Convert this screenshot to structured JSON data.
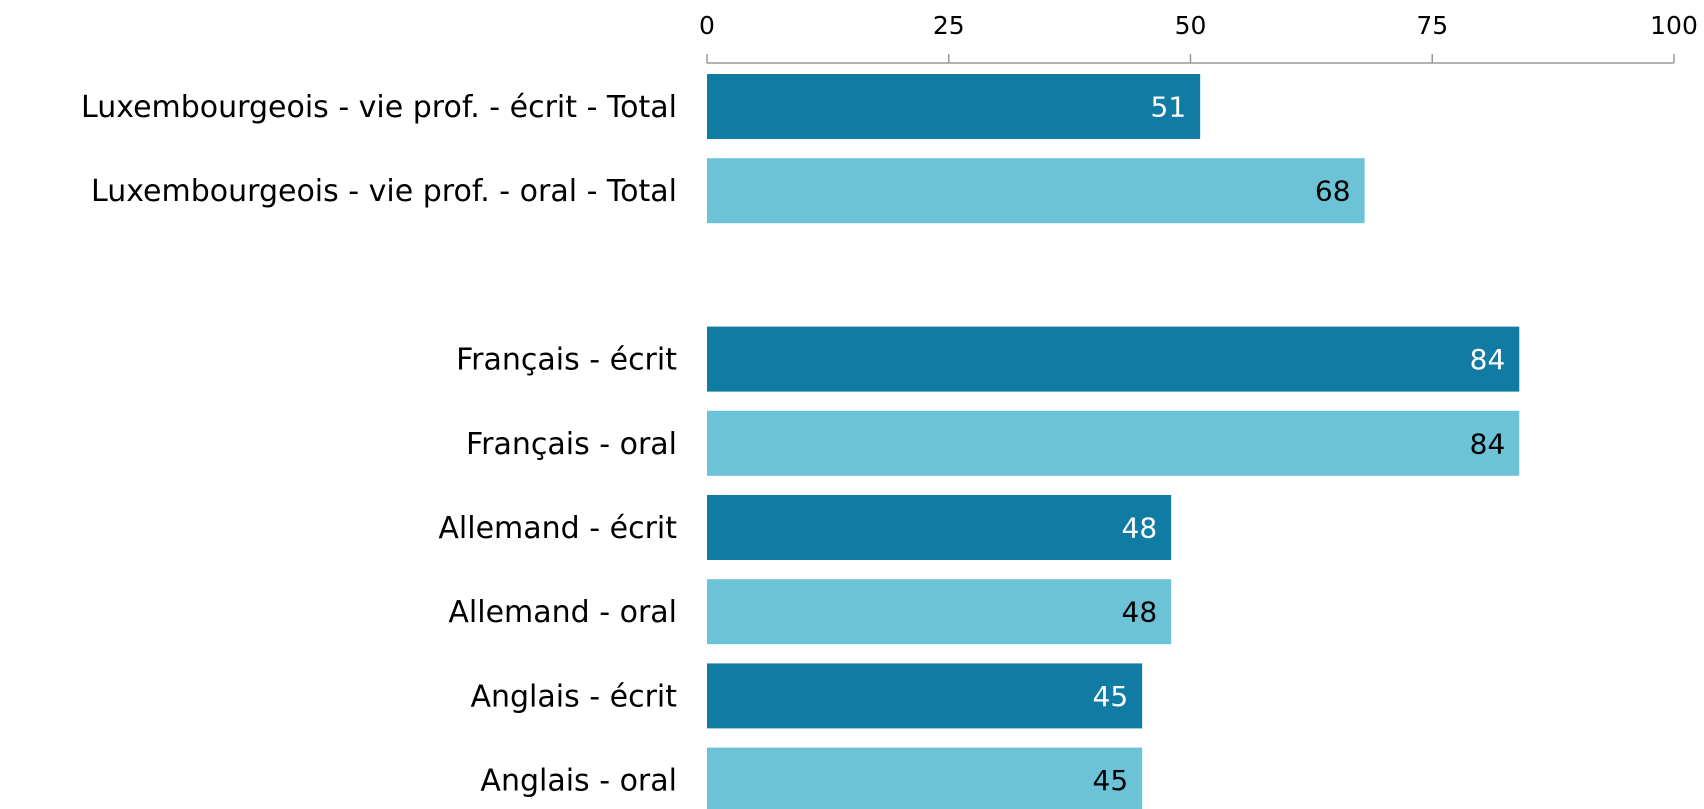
{
  "chart_data": {
    "type": "hbar",
    "categories": [
      "Luxembourgeois - vie prof. - écrit - Total",
      "Luxembourgeois - vie prof. - oral - Total",
      null,
      "Français - écrit",
      "Français - oral",
      "Allemand - écrit",
      "Allemand - oral",
      "Anglais - écrit",
      "Anglais - oral"
    ],
    "values": [
      51,
      68,
      null,
      84,
      84,
      48,
      48,
      45,
      45
    ],
    "colors": [
      "#107ba3",
      "#6cc2d6",
      null,
      "#107ba3",
      "#6cc2d6",
      "#107ba3",
      "#6cc2d6",
      "#107ba3",
      "#6cc2d6"
    ],
    "label_colors": [
      "#ffffff",
      "#000000",
      null,
      "#ffffff",
      "#000000",
      "#ffffff",
      "#000000",
      "#ffffff",
      "#000000"
    ],
    "xlim": [
      0,
      100
    ],
    "xticks": [
      0,
      25,
      50,
      75,
      100
    ],
    "grid": false
  }
}
